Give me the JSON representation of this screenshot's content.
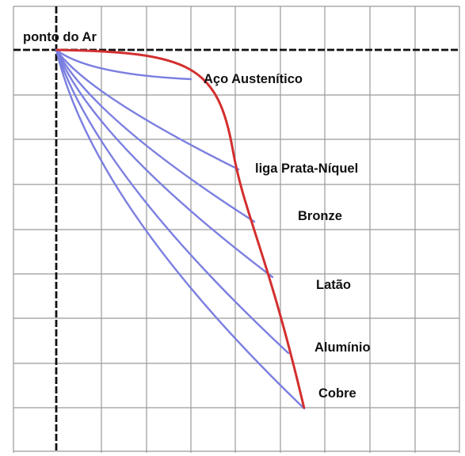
{
  "labels": {
    "origin": "ponto do Ar",
    "curves": [
      "Aço Austenítico",
      "liga Prata-Níquel",
      "Bronze",
      "Latão",
      "Alumínio",
      "Cobre"
    ]
  },
  "colors": {
    "grid": "#9a9a9a",
    "axis": "#111111",
    "curve": "#d32f2f",
    "lines": "#7b7fe0",
    "text": "#111111"
  }
}
